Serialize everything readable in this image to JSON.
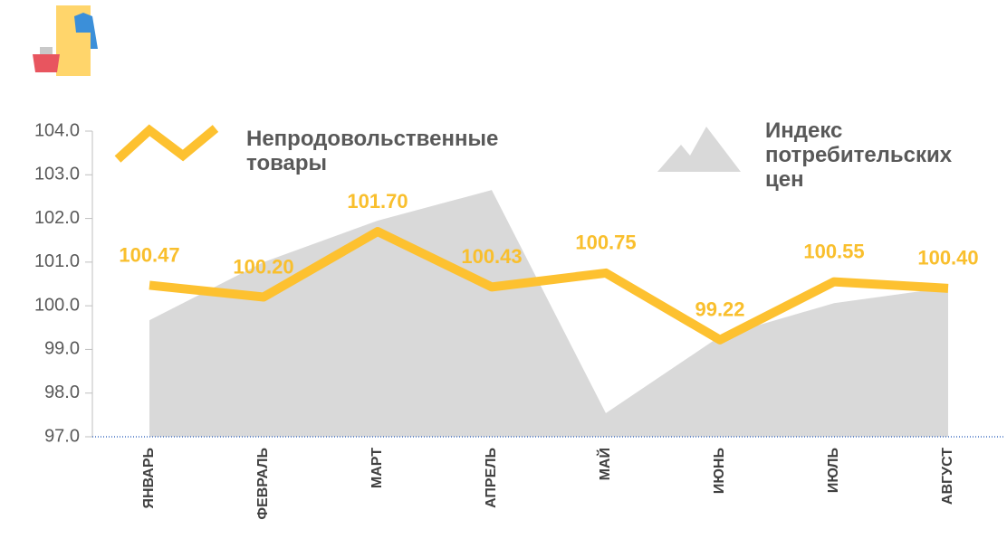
{
  "chart_data": {
    "type": "line",
    "categories": [
      "ЯНВАРЬ",
      "ФЕВРАЛЬ",
      "МАРТ",
      "АПРЕЛЬ",
      "МАЙ",
      "ИЮНЬ",
      "ИЮЛЬ",
      "АВГУСТ"
    ],
    "series": [
      {
        "name": "Индекс потребительских цен",
        "type": "area",
        "color": "#d9d9d9",
        "values": [
          99.67,
          101.0,
          101.95,
          102.65,
          97.54,
          99.3,
          100.06,
          100.42
        ]
      },
      {
        "name": "Непродовольственные товары",
        "type": "line",
        "color": "#fdc130",
        "values": [
          100.47,
          100.2,
          101.7,
          100.43,
          100.75,
          99.22,
          100.55,
          100.4
        ],
        "value_labels": [
          "100.47",
          "100.20",
          "101.70",
          "100.43",
          "100.75",
          "99.22",
          "100.55",
          "100.40"
        ]
      }
    ],
    "ylim": [
      97,
      104
    ],
    "yticks": [
      {
        "value": 97,
        "label": "97.0"
      },
      {
        "value": 98,
        "label": "98.0"
      },
      {
        "value": 99,
        "label": "99.0"
      },
      {
        "value": 100,
        "label": "100.0"
      },
      {
        "value": 101,
        "label": "101.0"
      },
      {
        "value": 102,
        "label": "102.0"
      },
      {
        "value": 103,
        "label": "103.0"
      },
      {
        "value": 104,
        "label": "104.0"
      }
    ]
  }
}
